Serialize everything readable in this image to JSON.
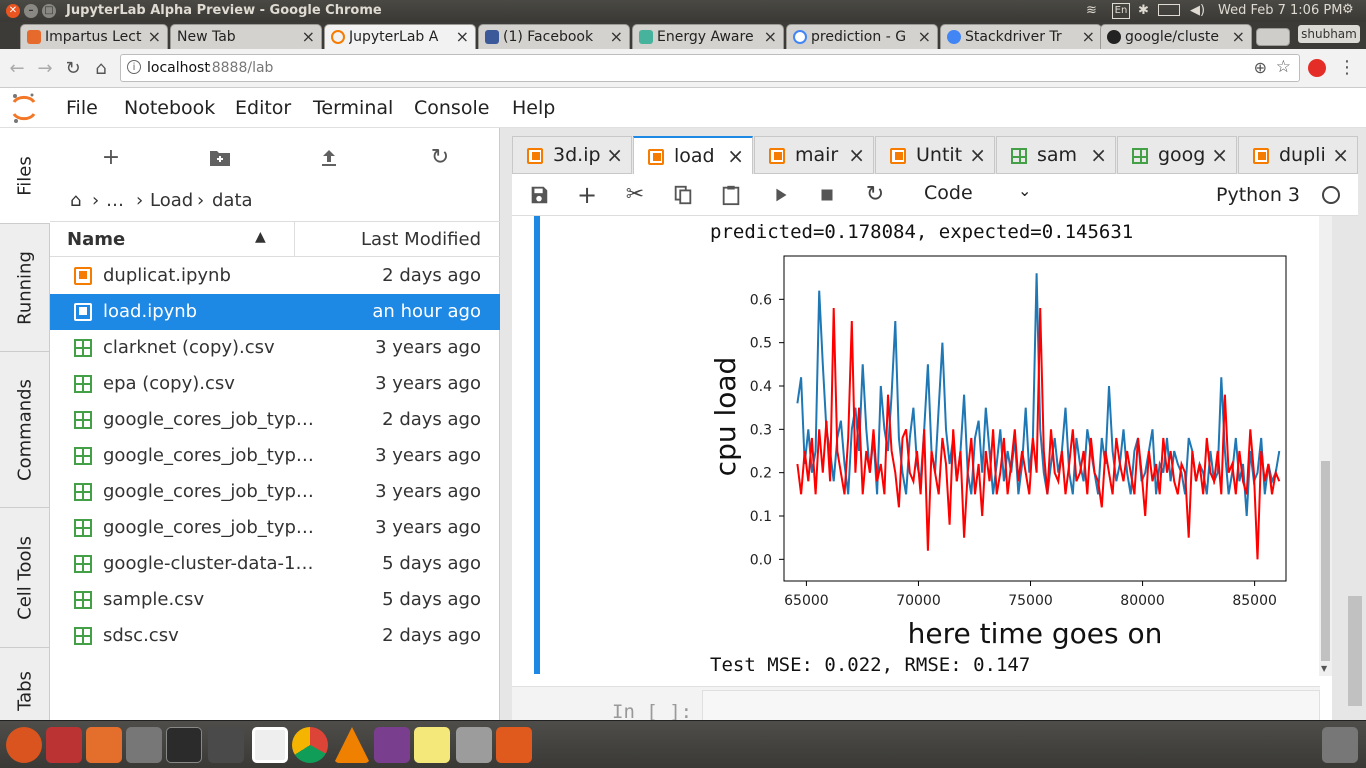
{
  "window": {
    "title": "JupyterLab Alpha Preview - Google Chrome"
  },
  "system": {
    "time": "Wed Feb 7  1:06 PM",
    "keyboard": "En"
  },
  "chrome": {
    "tabs": [
      {
        "label": "Impartus Lect",
        "color": "#e66a2c"
      },
      {
        "label": "New Tab",
        "color": ""
      },
      {
        "label": "JupyterLab A",
        "color": "#f57c00"
      },
      {
        "label": "(1) Facebook",
        "color": "#3b5998"
      },
      {
        "label": "Energy Aware",
        "color": "#47b39d"
      },
      {
        "label": "prediction - G",
        "color": "#4285f4"
      },
      {
        "label": "Stackdriver Tr",
        "color": "#4285f4"
      },
      {
        "label": "google/cluste",
        "color": "#222222"
      }
    ],
    "profile": "shubham",
    "url_host": "localhost",
    "url_path": ":8888/lab"
  },
  "menu": [
    "File",
    "Notebook",
    "Editor",
    "Terminal",
    "Console",
    "Help"
  ],
  "side_tabs": [
    "Files",
    "Running",
    "Commands",
    "Cell Tools",
    "Tabs"
  ],
  "browser": {
    "crumbs": {
      "folder1": "Load",
      "folder2": "data",
      "ellipsis": "…",
      "sep": "›"
    },
    "col_name": "Name",
    "col_modified": "Last Modified",
    "files": [
      {
        "name": "duplicat.ipynb",
        "modified": "2 days ago",
        "type": "notebook"
      },
      {
        "name": "load.ipynb",
        "modified": "an hour ago",
        "type": "notebook"
      },
      {
        "name": "clarknet (copy).csv",
        "modified": "3 years ago",
        "type": "csv"
      },
      {
        "name": "epa (copy).csv",
        "modified": "3 years ago",
        "type": "csv"
      },
      {
        "name": "google_cores_job_typ…",
        "modified": "2 days ago",
        "type": "csv"
      },
      {
        "name": "google_cores_job_typ…",
        "modified": "3 years ago",
        "type": "csv"
      },
      {
        "name": "google_cores_job_typ…",
        "modified": "3 years ago",
        "type": "csv"
      },
      {
        "name": "google_cores_job_typ…",
        "modified": "3 years ago",
        "type": "csv"
      },
      {
        "name": "google-cluster-data-1.…",
        "modified": "5 days ago",
        "type": "csv"
      },
      {
        "name": "sample.csv",
        "modified": "5 days ago",
        "type": "csv"
      },
      {
        "name": "sdsc.csv",
        "modified": "2 days ago",
        "type": "csv"
      }
    ]
  },
  "doc_tabs": [
    {
      "label": "3d.ip",
      "type": "notebook"
    },
    {
      "label": "load",
      "type": "notebook"
    },
    {
      "label": "mair",
      "type": "notebook"
    },
    {
      "label": "Untit",
      "type": "notebook"
    },
    {
      "label": "sam",
      "type": "csv"
    },
    {
      "label": "goog",
      "type": "csv"
    },
    {
      "label": "dupli",
      "type": "notebook"
    }
  ],
  "notebook": {
    "cell_type": "Code",
    "kernel": "Python 3",
    "output_line": "predicted=0.178084, expected=0.145631",
    "mse_line": "Test MSE: 0.022, RMSE: 0.147",
    "prompt": "In [ ]:"
  },
  "chart_data": {
    "type": "line",
    "title": "",
    "xlabel": "here time goes on",
    "ylabel": "cpu load",
    "xlim": [
      64000,
      86400
    ],
    "ylim": [
      -0.05,
      0.7
    ],
    "x_start": 64600,
    "x_end": 86100,
    "xticks": [
      65000,
      70000,
      75000,
      80000,
      85000
    ],
    "yticks": [
      0.0,
      0.1,
      0.2,
      0.3,
      0.4,
      0.5,
      0.6
    ],
    "series": [
      {
        "color": "#1f77b4",
        "values": [
          0.36,
          0.42,
          0.22,
          0.3,
          0.2,
          0.25,
          0.62,
          0.45,
          0.3,
          0.25,
          0.18,
          0.28,
          0.32,
          0.22,
          0.15,
          0.3,
          0.35,
          0.25,
          0.45,
          0.3,
          0.2,
          0.28,
          0.15,
          0.4,
          0.3,
          0.25,
          0.38,
          0.55,
          0.28,
          0.2,
          0.15,
          0.28,
          0.35,
          0.22,
          0.18,
          0.3,
          0.45,
          0.25,
          0.2,
          0.35,
          0.5,
          0.3,
          0.22,
          0.28,
          0.18,
          0.25,
          0.38,
          0.2,
          0.15,
          0.28,
          0.32,
          0.2,
          0.35,
          0.25,
          0.15,
          0.22,
          0.3,
          0.18,
          0.25,
          0.2,
          0.28,
          0.15,
          0.22,
          0.35,
          0.2,
          0.28,
          0.66,
          0.3,
          0.2,
          0.15,
          0.22,
          0.28,
          0.2,
          0.25,
          0.35,
          0.2,
          0.15,
          0.28,
          0.22,
          0.18,
          0.3,
          0.25,
          0.2,
          0.15,
          0.28,
          0.22,
          0.4,
          0.25,
          0.18,
          0.22,
          0.3,
          0.2,
          0.15,
          0.25,
          0.28,
          0.18,
          0.2,
          0.25,
          0.3,
          0.15,
          0.22,
          0.2,
          0.28,
          0.18,
          0.25,
          0.22,
          0.2,
          0.15,
          0.28,
          0.25,
          0.18,
          0.22,
          0.2,
          0.15,
          0.25,
          0.18,
          0.2,
          0.42,
          0.25,
          0.15,
          0.2,
          0.28,
          0.18,
          0.22,
          0.1,
          0.25,
          0.18,
          0.2,
          0.28,
          0.15,
          0.22,
          0.18,
          0.2,
          0.25
        ]
      },
      {
        "color": "#ff0000",
        "values": [
          0.22,
          0.15,
          0.25,
          0.18,
          0.28,
          0.15,
          0.3,
          0.2,
          0.32,
          0.18,
          0.58,
          0.25,
          0.2,
          0.15,
          0.28,
          0.55,
          0.2,
          0.35,
          0.15,
          0.25,
          0.2,
          0.3,
          0.18,
          0.22,
          0.15,
          0.38,
          0.25,
          0.2,
          0.12,
          0.28,
          0.3,
          0.2,
          0.18,
          0.25,
          0.15,
          0.3,
          0.02,
          0.25,
          0.2,
          0.15,
          0.28,
          0.22,
          0.08,
          0.3,
          0.18,
          0.25,
          0.05,
          0.2,
          0.28,
          0.15,
          0.22,
          0.1,
          0.25,
          0.18,
          0.3,
          0.15,
          0.2,
          0.28,
          0.15,
          0.22,
          0.3,
          0.18,
          0.25,
          0.2,
          0.15,
          0.28,
          0.2,
          0.58,
          0.25,
          0.15,
          0.3,
          0.2,
          0.18,
          0.25,
          0.15,
          0.22,
          0.3,
          0.18,
          0.2,
          0.25,
          0.15,
          0.28,
          0.2,
          0.18,
          0.12,
          0.25,
          0.2,
          0.15,
          0.28,
          0.22,
          0.18,
          0.25,
          0.2,
          0.15,
          0.28,
          0.2,
          0.1,
          0.25,
          0.18,
          0.22,
          0.15,
          0.28,
          0.2,
          0.25,
          0.18,
          0.15,
          0.22,
          0.2,
          0.05,
          0.25,
          0.18,
          0.22,
          0.15,
          0.28,
          0.2,
          0.18,
          0.25,
          0.15,
          0.38,
          0.2,
          0.22,
          0.15,
          0.25,
          0.18,
          0.15,
          0.3,
          0.2,
          0.0,
          0.25,
          0.18,
          0.22,
          0.15,
          0.2,
          0.18
        ]
      }
    ]
  }
}
